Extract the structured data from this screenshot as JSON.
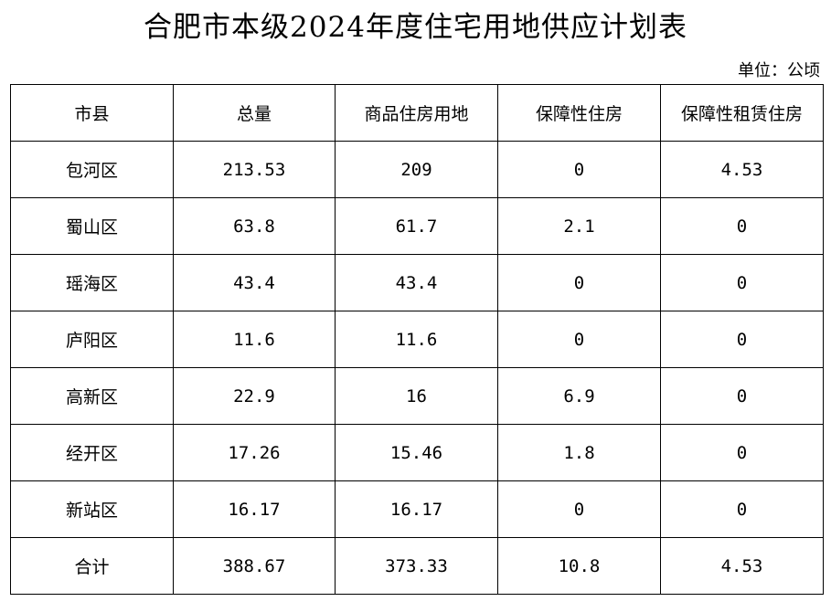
{
  "title": "合肥市本级2024年度住宅用地供应计划表",
  "unit": "单位：公顷",
  "table": {
    "headers": [
      "市县",
      "总量",
      "商品住房用地",
      "保障性住房",
      "保障性租赁住房"
    ],
    "rows": [
      [
        "包河区",
        "213.53",
        "209",
        "0",
        "4.53"
      ],
      [
        "蜀山区",
        "63.8",
        "61.7",
        "2.1",
        "0"
      ],
      [
        "瑶海区",
        "43.4",
        "43.4",
        "0",
        "0"
      ],
      [
        "庐阳区",
        "11.6",
        "11.6",
        "0",
        "0"
      ],
      [
        "高新区",
        "22.9",
        "16",
        "6.9",
        "0"
      ],
      [
        "经开区",
        "17.26",
        "15.46",
        "1.8",
        "0"
      ],
      [
        "新站区",
        "16.17",
        "16.17",
        "0",
        "0"
      ],
      [
        "合计",
        "388.67",
        "373.33",
        "10.8",
        "4.53"
      ]
    ]
  }
}
